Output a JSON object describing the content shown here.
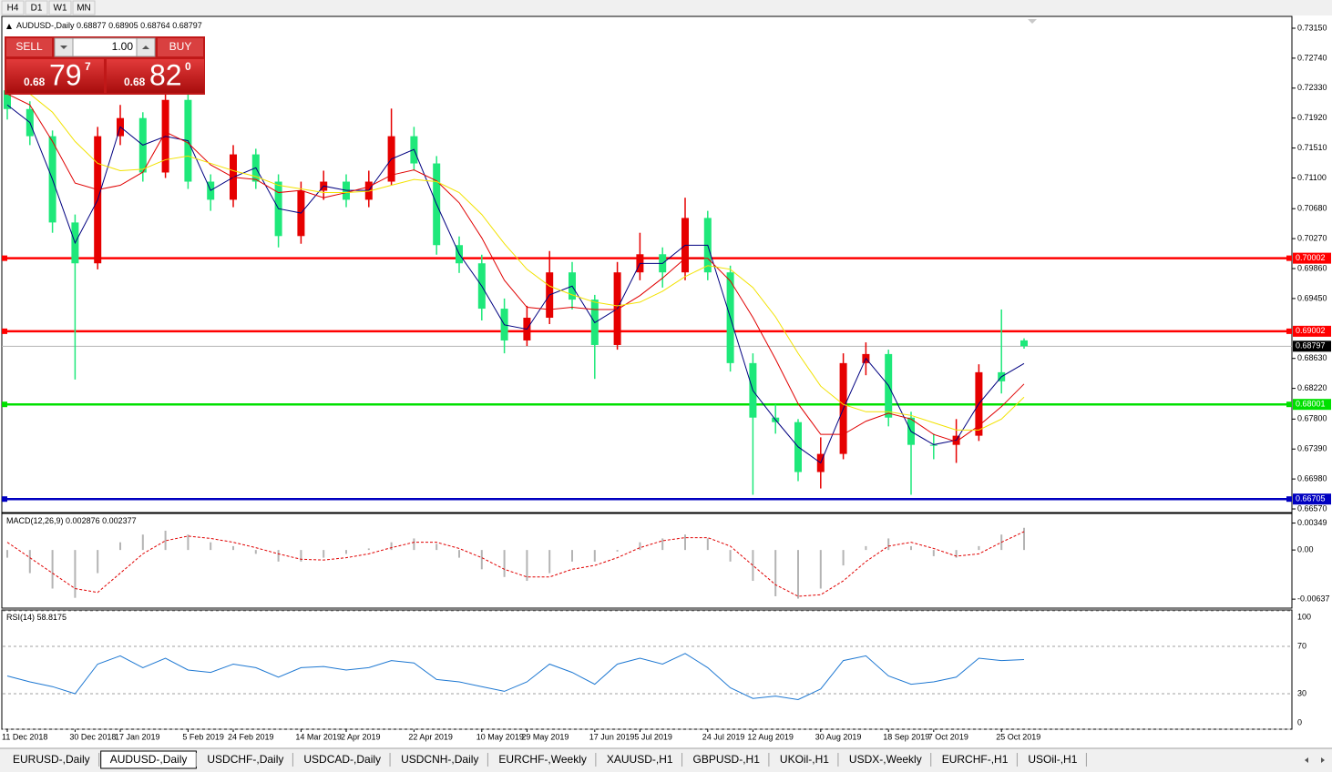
{
  "toolbar": {
    "timeframes": [
      "H4",
      "D1",
      "W1",
      "MN"
    ]
  },
  "trade_panel": {
    "sell_label": "SELL",
    "buy_label": "BUY",
    "volume": "1.00",
    "sell_price": {
      "prefix": "0.68",
      "big": "79",
      "small": "7"
    },
    "buy_price": {
      "prefix": "0.68",
      "big": "82",
      "small": "0"
    }
  },
  "chart_data": [
    {
      "type": "candlestick",
      "title": "AUDUSD-,Daily",
      "categories": [
        "11 Dec 2018",
        null,
        null,
        "30 Dec 2018",
        null,
        "17 Jan 2019",
        null,
        null,
        "5 Feb 2019",
        null,
        "24 Feb 2019",
        null,
        null,
        "14 Mar 2019",
        null,
        "2 Apr 2019",
        null,
        null,
        "22 Apr 2019",
        null,
        null,
        "10 May 2019",
        null,
        "29 May 2019",
        null,
        null,
        "17 Jun 2019",
        null,
        "5 Jul 2019",
        null,
        null,
        "24 Jul 2019",
        null,
        "12 Aug 2019",
        null,
        null,
        "30 Aug 2019",
        null,
        null,
        "18 Sep 2019",
        null,
        "7 Oct 2019",
        null,
        null,
        "25 Oct 2019",
        null
      ],
      "open": [
        0.723,
        0.72044,
        0.71672,
        0.70491,
        0.69932,
        0.71672,
        0.7192,
        0.71175,
        0.72169,
        0.7105,
        0.70802,
        0.71423,
        0.7105,
        0.70305,
        0.70926,
        0.7105,
        0.70802,
        0.7105,
        0.71672,
        0.71299,
        0.70181,
        0.69932,
        0.69311,
        0.68876,
        0.69187,
        0.69808,
        0.69435,
        0.68814,
        0.69808,
        0.70056,
        0.69808,
        0.70553,
        0.69808,
        0.68566,
        0.6782,
        0.67758,
        0.67075,
        0.67323,
        0.68566,
        0.6869,
        0.6782,
        0.67447,
        0.67447,
        0.67572,
        0.68441,
        0.68877
      ],
      "high": [
        0.7245,
        0.7215,
        0.7175,
        0.706,
        0.718,
        0.721,
        0.72,
        0.723,
        0.7225,
        0.7115,
        0.7155,
        0.715,
        0.7115,
        0.7105,
        0.712,
        0.7115,
        0.712,
        0.7205,
        0.718,
        0.714,
        0.703,
        0.7005,
        0.6945,
        0.6935,
        0.701,
        0.6995,
        0.695,
        0.6995,
        0.7035,
        0.7015,
        0.7083,
        0.7065,
        0.699,
        0.687,
        0.68,
        0.678,
        0.6755,
        0.687,
        0.6885,
        0.6875,
        0.679,
        0.676,
        0.678,
        0.6855,
        0.693,
        0.68905
      ],
      "low": [
        0.719,
        0.7155,
        0.7035,
        0.68342,
        0.6985,
        0.7155,
        0.7105,
        0.711,
        0.7095,
        0.7065,
        0.707,
        0.7095,
        0.7015,
        0.702,
        0.708,
        0.707,
        0.707,
        0.71,
        0.712,
        0.7005,
        0.698,
        0.6915,
        0.687,
        0.688,
        0.691,
        0.693,
        0.6835,
        0.6875,
        0.697,
        0.696,
        0.697,
        0.697,
        0.6845,
        0.66764,
        0.676,
        0.6695,
        0.6685,
        0.6725,
        0.684,
        0.677,
        0.66764,
        0.6725,
        0.672,
        0.675,
        0.6815,
        0.68764
      ],
      "close": [
        0.72044,
        0.71672,
        0.70491,
        0.69932,
        0.71672,
        0.7192,
        0.71175,
        0.72169,
        0.7105,
        0.70802,
        0.71423,
        0.7105,
        0.70305,
        0.70926,
        0.7105,
        0.70802,
        0.7105,
        0.71672,
        0.71299,
        0.70181,
        0.69932,
        0.69311,
        0.68876,
        0.69187,
        0.69808,
        0.69435,
        0.68814,
        0.69808,
        0.70056,
        0.69808,
        0.70553,
        0.69808,
        0.68566,
        0.6782,
        0.67758,
        0.67075,
        0.67323,
        0.68566,
        0.6869,
        0.6782,
        0.67447,
        0.67447,
        0.67572,
        0.68441,
        0.68317,
        0.68797
      ],
      "up_color": "#e60000",
      "down_color": "#1ee87a",
      "moving_averages": [
        {
          "color": "#000080",
          "values": [
            0.721,
            0.7186,
            0.7108,
            0.7021,
            0.708,
            0.718,
            0.7155,
            0.7167,
            0.7161,
            0.7093,
            0.7111,
            0.7124,
            0.7068,
            0.7062,
            0.7099,
            0.7093,
            0.7093,
            0.7136,
            0.7149,
            0.7074,
            0.7006,
            0.6962,
            0.6909,
            0.6903,
            0.695,
            0.6962,
            0.6912,
            0.6931,
            0.6993,
            0.6993,
            0.7018,
            0.7018,
            0.6919,
            0.6819,
            0.6779,
            0.6742,
            0.672,
            0.6794,
            0.6863,
            0.6826,
            0.6763,
            0.6745,
            0.6751,
            0.6801,
            0.6838,
            0.6856
          ]
        },
        {
          "color": "#e00000",
          "values": [
            0.7225,
            0.721,
            0.716,
            0.7103,
            0.7094,
            0.71,
            0.7118,
            0.7173,
            0.7158,
            0.7128,
            0.7111,
            0.7108,
            0.709,
            0.7093,
            0.7083,
            0.709,
            0.7098,
            0.7114,
            0.7121,
            0.7106,
            0.7076,
            0.7028,
            0.697,
            0.6933,
            0.693,
            0.6933,
            0.693,
            0.693,
            0.6949,
            0.6973,
            0.7,
            0.7,
            0.6969,
            0.6919,
            0.6862,
            0.6801,
            0.6759,
            0.6759,
            0.6777,
            0.6788,
            0.678,
            0.6759,
            0.6749,
            0.6771,
            0.6797,
            0.6828
          ]
        },
        {
          "color": "#f2e200",
          "values": [
            0.724,
            0.7225,
            0.72,
            0.716,
            0.713,
            0.712,
            0.7122,
            0.7135,
            0.714,
            0.713,
            0.712,
            0.7112,
            0.71,
            0.7095,
            0.709,
            0.709,
            0.7092,
            0.71,
            0.7108,
            0.7105,
            0.709,
            0.706,
            0.702,
            0.6985,
            0.6962,
            0.695,
            0.694,
            0.6935,
            0.694,
            0.6955,
            0.6975,
            0.699,
            0.6985,
            0.696,
            0.692,
            0.687,
            0.6825,
            0.68,
            0.679,
            0.679,
            0.6785,
            0.6775,
            0.6765,
            0.6765,
            0.678,
            0.681
          ]
        }
      ],
      "levels": [
        {
          "value": 0.70002,
          "color": "#ff0000"
        },
        {
          "value": 0.69002,
          "color": "#ff0000"
        },
        {
          "value": 0.68001,
          "color": "#00e000"
        },
        {
          "value": 0.66705,
          "color": "#0000c0"
        }
      ],
      "ylim": [
        0.66533,
        0.73287
      ],
      "yticks": [
        {
          "value": 0.7315,
          "label": "0.73150"
        },
        {
          "value": 0.7274,
          "label": "0.72740"
        },
        {
          "value": 0.7233,
          "label": "0.72330"
        },
        {
          "value": 0.7192,
          "label": "0.71920"
        },
        {
          "value": 0.7151,
          "label": "0.71510"
        },
        {
          "value": 0.711,
          "label": "0.71100"
        },
        {
          "value": 0.7068,
          "label": "0.70680"
        },
        {
          "value": 0.7027,
          "label": "0.70270"
        },
        {
          "value": 0.6986,
          "label": "0.69860"
        },
        {
          "value": 0.6945,
          "label": "0.69450"
        },
        {
          "value": 0.6863,
          "label": "0.68630"
        },
        {
          "value": 0.6822,
          "label": "0.68220"
        },
        {
          "value": 0.678,
          "label": "0.67800"
        },
        {
          "value": 0.6739,
          "label": "0.67390"
        },
        {
          "value": 0.6698,
          "label": "0.66980"
        },
        {
          "value": 0.6657,
          "label": "0.66570"
        }
      ]
    },
    {
      "type": "macd",
      "title": "MACD(12,26,9)",
      "histogram": {
        "color": "#b4b4b4",
        "values": [
          -0.001,
          -0.003,
          -0.005,
          -0.0062,
          -0.003,
          0.001,
          0.002,
          0.0025,
          0.002,
          0.001,
          0.0005,
          -0.0005,
          -0.0015,
          -0.0015,
          -0.001,
          -0.0005,
          0.0002,
          0.001,
          0.0015,
          0.0008,
          -0.001,
          -0.0025,
          -0.0035,
          -0.004,
          -0.003,
          -0.0015,
          -0.0015,
          -0.0002,
          0.001,
          0.0015,
          0.002,
          0.0015,
          -0.0015,
          -0.004,
          -0.006,
          -0.0063,
          -0.005,
          -0.002,
          0.0005,
          0.0015,
          0.0005,
          -0.0008,
          -0.001,
          0.0005,
          0.002,
          0.002876
        ]
      },
      "signal": {
        "color": "#e00000",
        "values": [
          0.001,
          -0.001,
          -0.003,
          -0.005,
          -0.0055,
          -0.003,
          -0.0005,
          0.0012,
          0.0018,
          0.0015,
          0.001,
          0.0003,
          -0.0005,
          -0.0012,
          -0.0013,
          -0.001,
          -0.0005,
          0.0003,
          0.001,
          0.001,
          0.0002,
          -0.001,
          -0.0025,
          -0.0035,
          -0.0035,
          -0.0025,
          -0.002,
          -0.001,
          0.0003,
          0.0012,
          0.0016,
          0.0016,
          0.0005,
          -0.002,
          -0.0045,
          -0.006,
          -0.0058,
          -0.004,
          -0.0015,
          0.0005,
          0.001,
          0.0002,
          -0.0008,
          -0.0005,
          0.001,
          0.002377
        ]
      },
      "ylim": [
        -0.0073,
        0.0045
      ],
      "yticks": [
        0.00349,
        {
          "value": 0,
          "label": "0.00"
        },
        -0.00637
      ]
    },
    {
      "type": "line",
      "title": "RSI(14)",
      "color": "#1e78d2",
      "values": [
        45,
        40,
        36,
        30,
        55,
        62,
        52,
        60,
        50,
        48,
        55,
        52,
        44,
        52,
        53,
        50,
        52,
        58,
        56,
        42,
        40,
        36,
        32,
        40,
        55,
        48,
        38,
        55,
        60,
        55,
        64,
        52,
        35,
        26,
        28,
        25,
        34,
        58,
        62,
        45,
        38,
        40,
        44,
        60,
        58,
        58.8175
      ],
      "ylim": [
        0,
        100
      ],
      "yticks": [
        100,
        70,
        30,
        0
      ]
    }
  ],
  "tabs": {
    "items": [
      "EURUSD-,Daily",
      "AUDUSD-,Daily",
      "USDCHF-,Daily",
      "USDCAD-,Daily",
      "USDCNH-,Daily",
      "EURCHF-,Weekly",
      "XAUUSD-,H1",
      "GBPUSD-,H1",
      "UKOil-,H1",
      "USDX-,Weekly",
      "EURCHF-,H1",
      "USOil-,H1"
    ],
    "active": 1
  }
}
